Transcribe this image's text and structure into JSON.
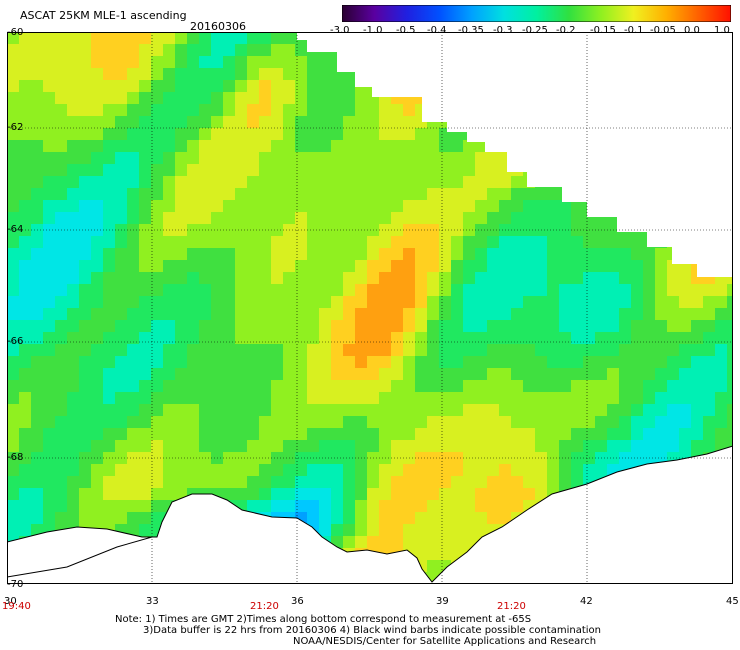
{
  "header": {
    "title": "ASCAT 25KM MLE-1 ascending",
    "date": "20160306"
  },
  "colorbar": {
    "labels": [
      "-3.0",
      "-1.0",
      "-0.5",
      "-0.4",
      "-0.35",
      "-0.3",
      "-0.25",
      "-0.2",
      "-0.15",
      "-0.1",
      "-0.05",
      "0.0",
      "1.0"
    ],
    "colors": [
      "#2a0030",
      "#5a00a0",
      "#2020e0",
      "#0050ff",
      "#00a0ff",
      "#00e0e0",
      "#00f0a0",
      "#30e040",
      "#90f020",
      "#f0f020",
      "#ffb000",
      "#ff6000",
      "#ff1000"
    ]
  },
  "map": {
    "lat_labels": [
      "-60",
      "-62",
      "-64",
      "-66",
      "-68",
      "-70"
    ],
    "lon_labels": [
      "30",
      "33",
      "36",
      "39",
      "42",
      "45"
    ],
    "time_labels": [
      "19:40",
      "21:20",
      "21:20"
    ]
  },
  "footer": {
    "note_line1": "Note: 1) Times are GMT 2)Times along bottom correspond to measurement at -65S",
    "note_line2": "3)Data buffer is 22 hrs from 20160306 4) Black wind barbs indicate possible contamination",
    "note_line3": "NOAA/NESDIS/Center for Satellite Applications and Research"
  }
}
